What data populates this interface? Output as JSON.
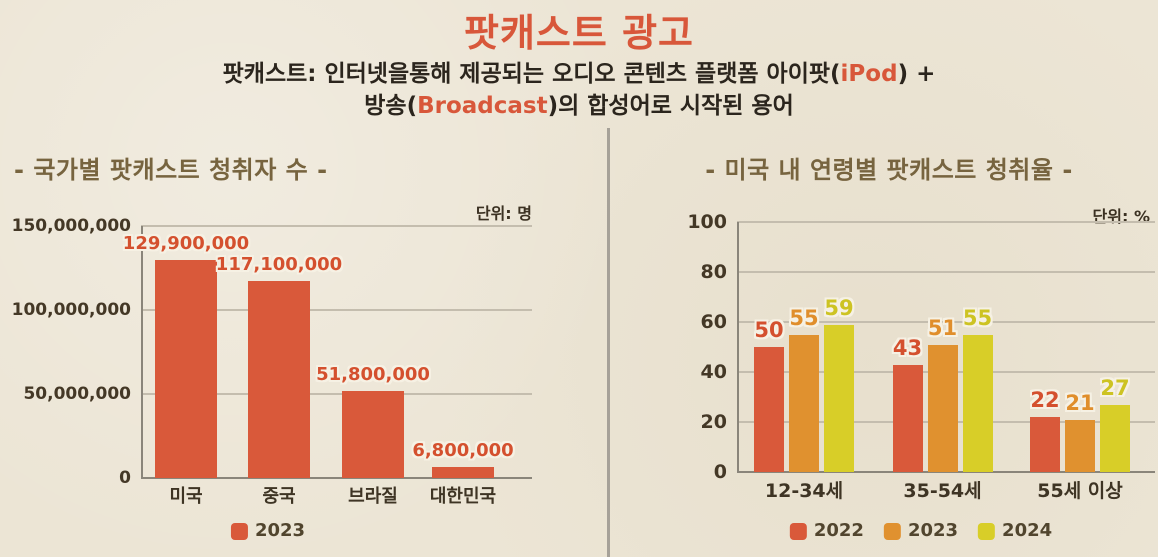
{
  "header": {
    "title": "팟캐스트 광고",
    "subtitle": {
      "line1_pre": "팟캐스트: 인터넷을통해 제공되는 오디오 콘텐츠 플랫폼 아이팟(",
      "line1_accent": "iPod",
      "line1_post": ") +",
      "line2_pre": "방송(",
      "line2_accent": "Broadcast",
      "line2_post": ")의 합성어로 시작된 용어"
    }
  },
  "colors": {
    "background": "#ece5d5",
    "accent_red": "#d8573a",
    "section_title_brown": "#77643f",
    "dark_text": "#2b251d",
    "gridline": "#c4bdae",
    "axis": "#8a857a",
    "divider": "#a6a198"
  },
  "chart_data": [
    {
      "type": "bar",
      "title": "- 국가별 팟캐스트 청취자 수 -",
      "unit_label": "단위: 명",
      "categories": [
        "미국",
        "중국",
        "브라질",
        "대한민국"
      ],
      "series": [
        {
          "name": "2023",
          "color": "#d9593a",
          "label_color": "#d4502e",
          "values": [
            129900000,
            117100000,
            51800000,
            6800000
          ],
          "value_labels": [
            "129,900,000",
            "117,100,000",
            "51,800,000",
            "6,800,000"
          ]
        }
      ],
      "ylabel": "",
      "xlabel": "",
      "ylim": [
        0,
        150000000
      ],
      "yticks": [
        0,
        50000000,
        100000000,
        150000000
      ],
      "ytick_labels": [
        "0",
        "50,000,000",
        "100,000,000",
        "150,000,000"
      ],
      "grid": true,
      "legend_position": "bottom"
    },
    {
      "type": "bar",
      "title": "- 미국 내 연령별 팟캐스트 청취율 -",
      "unit_label": "단위: %",
      "categories": [
        "12-34세",
        "35-54세",
        "55세 이상"
      ],
      "series": [
        {
          "name": "2022",
          "color": "#d9593a",
          "label_color": "#d4502e",
          "values": [
            50,
            43,
            22
          ],
          "value_labels": [
            "50",
            "43",
            "22"
          ]
        },
        {
          "name": "2023",
          "color": "#e0912f",
          "label_color": "#e08e2b",
          "values": [
            55,
            51,
            21
          ],
          "value_labels": [
            "55",
            "51",
            "21"
          ]
        },
        {
          "name": "2024",
          "color": "#d8ce28",
          "label_color": "#cdc322",
          "values": [
            59,
            55,
            27
          ],
          "value_labels": [
            "59",
            "55",
            "27"
          ]
        }
      ],
      "ylabel": "",
      "xlabel": "",
      "ylim": [
        0,
        100
      ],
      "yticks": [
        0,
        20,
        40,
        60,
        80,
        100
      ],
      "ytick_labels": [
        "0",
        "20",
        "40",
        "60",
        "80",
        "100"
      ],
      "grid": true,
      "legend_position": "bottom"
    }
  ]
}
